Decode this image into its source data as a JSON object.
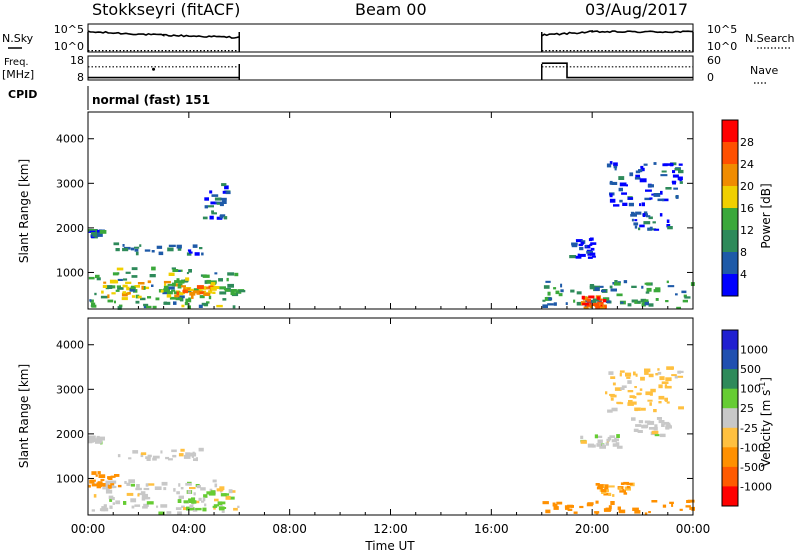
{
  "header": {
    "station": "Stokkseyri (fitACF)",
    "beam": "Beam 00",
    "date": "03/Aug/2017"
  },
  "labels": {
    "nsky": "N.Sky",
    "nsky_ticks": [
      "10^5",
      "10^0"
    ],
    "nsearch": "N.Search",
    "nsearch_ticks": [
      "10^5",
      "10^0"
    ],
    "freq_top": "Freq.",
    "freq_unit": "[MHz]",
    "freq_ticks": [
      "18",
      "8"
    ],
    "nave": "Nave",
    "nave_ticks": [
      "60",
      "0"
    ],
    "cpid": "CPID",
    "cpid_value": "normal (fast) 151",
    "x_axis_label": "Time UT",
    "y_label_power": "Slant Range [km]",
    "y_label_velocity": "Slant Range [km]",
    "power_scale_title": "Power [dB]",
    "velocity_scale_title": "Velocity [m s",
    "velocity_scale_sup": "-1",
    "velocity_scale_close": "]"
  },
  "colors": {
    "power_scale": [
      "#0000ff",
      "#1e5aa8",
      "#2e8a5a",
      "#3aa83a",
      "#f0d000",
      "#f08c00",
      "#ff5000",
      "#ff0000"
    ],
    "velocity_scale": [
      "#ff0000",
      "#ff5a00",
      "#ff9000",
      "#ffc040",
      "#c8c8c8",
      "#66cc33",
      "#2e8a5a",
      "#2050b0",
      "#2020d0"
    ]
  },
  "chart_data": [
    {
      "type": "line",
      "title": "N.Sky / N.Search",
      "x_ticks": [
        "00:00",
        "04:00",
        "08:00",
        "12:00",
        "16:00",
        "20:00",
        "00:00"
      ],
      "x_range_hours": [
        0,
        24
      ],
      "y_ticks": [
        "10^5",
        "10^0"
      ],
      "series": [
        {
          "name": "N.Sky",
          "segments": [
            [
              [
                0,
                0.72
              ],
              [
                3,
                0.6
              ],
              [
                6,
                0.52
              ]
            ],
            [
              [
                18,
                0.6
              ],
              [
                20,
                0.72
              ],
              [
                24,
                0.72
              ]
            ]
          ]
        },
        {
          "name": "N.Search",
          "segments": [
            [
              [
                0,
                0.05
              ],
              [
                6,
                0.05
              ]
            ],
            [
              [
                18,
                0.05
              ],
              [
                24,
                0.05
              ]
            ]
          ]
        }
      ]
    },
    {
      "type": "line",
      "title": "Freq / Nave",
      "y_ticks_left": [
        "18",
        "8"
      ],
      "y_ticks_right": [
        "60",
        "0"
      ],
      "series": [
        {
          "name": "Freq.",
          "segments": [
            [
              [
                0,
                0.1
              ],
              [
                6,
                0.1
              ]
            ],
            [
              [
                18,
                0.7
              ],
              [
                19,
                0.7
              ],
              [
                19,
                0.1
              ],
              [
                24,
                0.1
              ]
            ]
          ]
        },
        {
          "name": "Nave",
          "segments": [
            [
              [
                0,
                0.55
              ],
              [
                6,
                0.55
              ]
            ],
            [
              [
                18,
                0.55
              ],
              [
                24,
                0.55
              ]
            ]
          ]
        }
      ]
    },
    {
      "type": "heatmap",
      "title": "Power [dB]",
      "x_range_hours": [
        0,
        24
      ],
      "y_range_km": [
        180,
        4600
      ],
      "y_ticks": [
        "4000",
        "3000",
        "2000",
        "1000"
      ],
      "scale_ticks": [
        "28",
        "24",
        "20",
        "16",
        "12",
        "8",
        "4"
      ],
      "scale_range": [
        0,
        32
      ],
      "data_hours_ranges": [
        [
          0,
          6
        ],
        [
          18,
          24
        ]
      ],
      "regions": [
        {
          "t": [
            0,
            6
          ],
          "km": [
            200,
            1100
          ],
          "value": 12
        },
        {
          "t": [
            0.5,
            5
          ],
          "km": [
            400,
            800
          ],
          "value": 18
        },
        {
          "t": [
            3.5,
            5
          ],
          "km": [
            500,
            700
          ],
          "value": 22
        },
        {
          "t": [
            0,
            0.5
          ],
          "km": [
            1800,
            1950
          ],
          "value": 8
        },
        {
          "t": [
            1,
            4.5
          ],
          "km": [
            1400,
            1650
          ],
          "value": 6
        },
        {
          "t": [
            4.5,
            5.5
          ],
          "km": [
            2200,
            3000
          ],
          "value": 5
        },
        {
          "t": [
            18,
            24
          ],
          "km": [
            200,
            800
          ],
          "value": 10
        },
        {
          "t": [
            19.5,
            20.5
          ],
          "km": [
            200,
            450
          ],
          "value": 26
        },
        {
          "t": [
            21.5,
            23
          ],
          "km": [
            1950,
            2350
          ],
          "value": 7
        },
        {
          "t": [
            19,
            20
          ],
          "km": [
            1300,
            1800
          ],
          "value": 5
        },
        {
          "t": [
            20.5,
            23.5
          ],
          "km": [
            2500,
            3500
          ],
          "value": 4
        }
      ]
    },
    {
      "type": "heatmap",
      "title": "Velocity [m s-1]",
      "x_range_hours": [
        0,
        24
      ],
      "y_range_km": [
        180,
        4600
      ],
      "y_ticks": [
        "4000",
        "3000",
        "2000",
        "1000"
      ],
      "scale_ticks": [
        "1000",
        "500",
        "100",
        "25",
        "-25",
        "-100",
        "-500",
        "-1000"
      ],
      "data_hours_ranges": [
        [
          0,
          6
        ],
        [
          18,
          24
        ]
      ],
      "regions": [
        {
          "t": [
            0,
            6
          ],
          "km": [
            200,
            950
          ],
          "value": 0
        },
        {
          "t": [
            0,
            1.2
          ],
          "km": [
            800,
            1150
          ],
          "value": -200
        },
        {
          "t": [
            3.5,
            5.5
          ],
          "km": [
            300,
            700
          ],
          "value": 50
        },
        {
          "t": [
            0,
            0.5
          ],
          "km": [
            1800,
            1950
          ],
          "value": 0
        },
        {
          "t": [
            1,
            4.5
          ],
          "km": [
            1400,
            1650
          ],
          "value": 0
        },
        {
          "t": [
            18,
            24
          ],
          "km": [
            200,
            500
          ],
          "value": -200
        },
        {
          "t": [
            20,
            21.5
          ],
          "km": [
            600,
            900
          ],
          "value": -100
        },
        {
          "t": [
            21.5,
            23
          ],
          "km": [
            1950,
            2350
          ],
          "value": 0
        },
        {
          "t": [
            19.5,
            21
          ],
          "km": [
            1700,
            2000
          ],
          "value": 0
        },
        {
          "t": [
            20.5,
            23.5
          ],
          "km": [
            2500,
            3500
          ],
          "value": -50
        }
      ]
    }
  ]
}
